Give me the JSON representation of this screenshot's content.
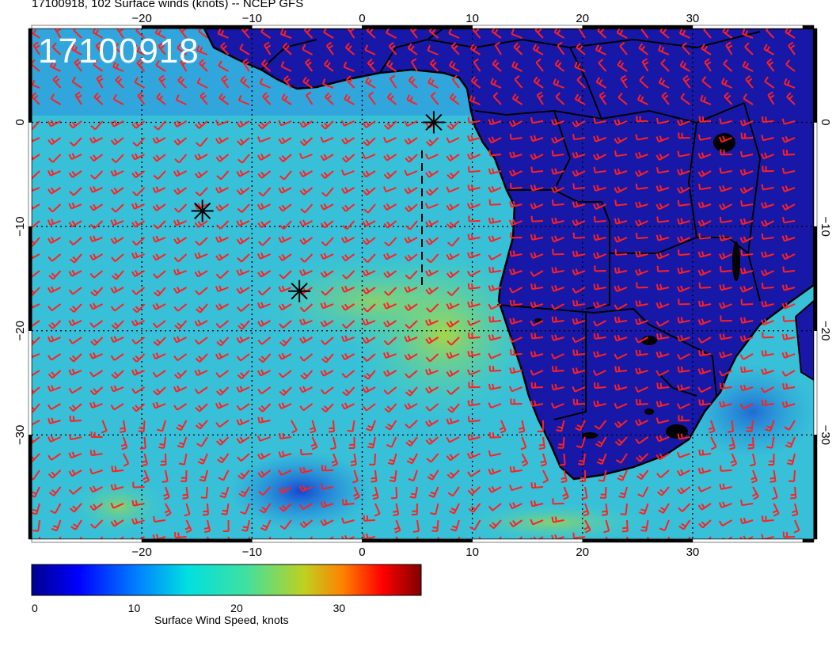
{
  "title": "17100918, 102 Surface winds (knots) -- NCEP GFS",
  "stamp": "17100918",
  "map": {
    "lon_range": [
      -30,
      41
    ],
    "lat_range": [
      -40,
      9
    ],
    "lon_ticks": [
      -20,
      -10,
      0,
      10,
      20,
      30
    ],
    "lat_ticks": [
      0,
      -10,
      -20,
      -30
    ],
    "lon_tick_labels": [
      "−20",
      "−10",
      "0",
      "10",
      "20",
      "30"
    ],
    "lat_tick_labels": [
      "0",
      "−10",
      "−20",
      "−30"
    ],
    "barb_color": "#ff2020",
    "land_color": "#1a1aa0",
    "ocean_color": "#38c4d8",
    "star_markers": [
      {
        "lon": 6.5,
        "lat": 0.0
      },
      {
        "lon": -14.5,
        "lat": -8.5
      },
      {
        "lon": -5.7,
        "lat": -16.2
      }
    ]
  },
  "colorbar": {
    "label": "Surface Wind Speed, knots",
    "min": 0,
    "max": 38,
    "ticks": [
      "0",
      "10",
      "20",
      "30"
    ],
    "tick_values": [
      0,
      10,
      20,
      30
    ],
    "colors": [
      "#00008f",
      "#0000ff",
      "#0080ff",
      "#00e0e0",
      "#40e0a0",
      "#c0d020",
      "#ff8000",
      "#ff0000",
      "#800000"
    ]
  }
}
